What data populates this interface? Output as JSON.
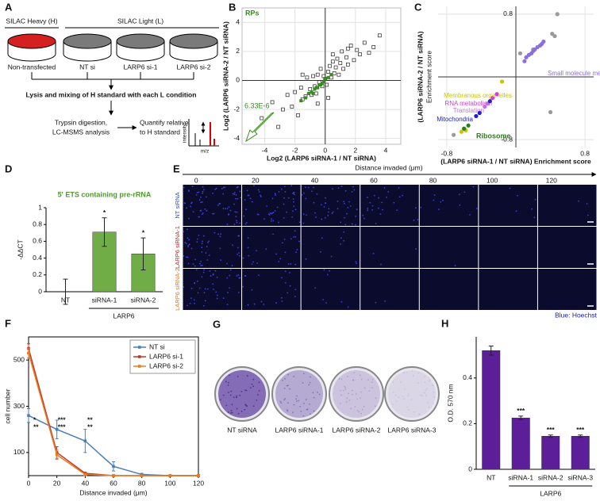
{
  "panel_a": {
    "label": "A",
    "heavy": "SILAC Heavy (H)",
    "light": "SILAC Light (L)",
    "conditions": [
      "Non-transfected",
      "NT si",
      "LARP6 si-1",
      "LARP6 si-2"
    ],
    "step1": "Lysis and mixing of H standard with each L condition",
    "step2": [
      "Trypsin digestion,",
      "LC-MSMS analysis"
    ],
    "step3": [
      "Quantify relative",
      "to H standard"
    ],
    "spectrum_axes": [
      "intensity",
      "m/z"
    ]
  },
  "chart_data": [
    {
      "type": "scatter",
      "panel_label": "B",
      "xlabel": "Log2 (LARP6 siRNA-1 / NT siRNA)",
      "ylabel": "Log2 (LARP6 siRNA-2 / NT siRNA)",
      "annotation": "6.33E-6",
      "series": [
        {
          "color": "#222222",
          "marker": "open-square",
          "x": [
            -4.2,
            -3.5,
            -3.1,
            -2.8,
            -2.5,
            -2.2,
            -2.0,
            -1.8,
            -1.6,
            -1.5,
            -1.3,
            -1.2,
            -1.0,
            -0.9,
            -0.8,
            -0.7,
            -0.6,
            -0.5,
            -0.4,
            -0.3,
            -0.2,
            -0.1,
            0,
            0.1,
            0.2,
            0.3,
            0.4,
            0.5,
            0.6,
            0.7,
            0.8,
            0.9,
            1.0,
            1.1,
            1.2,
            1.4,
            1.5,
            1.7,
            1.9,
            2.1,
            2.3,
            2.6,
            2.9,
            3.2,
            3.6,
            -0.5,
            0.5,
            -1.5,
            1.5,
            0.2
          ],
          "values": [
            -2.6,
            -1.5,
            -3.2,
            -2.0,
            -1.0,
            -1.8,
            -0.8,
            -2.4,
            -0.5,
            -1.3,
            -1.1,
            0.2,
            -0.6,
            -1.0,
            0.3,
            -0.4,
            -0.9,
            0.4,
            -0.1,
            0.8,
            -0.4,
            0.3,
            0.1,
            -0.3,
            0.6,
            1.0,
            0.2,
            1.3,
            0.5,
            0.9,
            1.5,
            0.4,
            1.2,
            2.0,
            0.8,
            1.6,
            1.1,
            2.4,
            1.4,
            2.1,
            1.8,
            2.6,
            1.9,
            2.3,
            3.1,
            -1.6,
            1.8,
            0.4,
            2.2,
            -1.2
          ]
        },
        {
          "name": "RPs",
          "color": "#3a8a22",
          "marker": "square",
          "x": [
            -1.6,
            -1.3,
            -1.1,
            -0.9,
            -0.8,
            -0.7,
            -0.6,
            -0.5,
            -0.4,
            -0.3,
            -0.2,
            -0.1,
            0,
            0.2,
            0.4
          ],
          "values": [
            -1.4,
            -1.2,
            -0.9,
            -0.8,
            -0.9,
            -0.6,
            -0.5,
            -0.5,
            -0.3,
            -0.3,
            -0.2,
            -0.1,
            0.1,
            0.2,
            0.4
          ]
        }
      ],
      "xlim": [
        -5.5,
        5
      ],
      "ylim": [
        -4.4,
        5
      ],
      "xticks": [
        -4,
        -2,
        0,
        2,
        4
      ],
      "yticks": [
        -4,
        -2,
        0,
        2,
        4
      ],
      "grid": true
    },
    {
      "type": "scatter",
      "panel_label": "C",
      "xlabel": "(LARP6 siRNA-1 / NT siRNA) Enrichment score",
      "ylabel": [
        "(LARP6 siRNA-2 / NT siRNA)",
        "Enrichment score"
      ],
      "series": [
        {
          "color": "#9a9a9a",
          "marker": "circle",
          "x": [
            -0.72,
            0.05,
            0.2,
            0.42,
            0.45,
            0.48,
            0.4
          ],
          "values": [
            -0.74,
            0.3,
            0.35,
            0.55,
            0.52,
            0.8,
            -0.45
          ]
        },
        {
          "name": "Small molecule metabolism",
          "color": "#8a6fe0",
          "marker": "circle",
          "x": [
            0.1,
            0.12,
            0.15,
            0.18,
            0.2,
            0.22,
            0.25,
            0.28,
            0.3,
            0.32
          ],
          "values": [
            0.2,
            0.25,
            0.28,
            0.3,
            0.33,
            0.35,
            0.38,
            0.4,
            0.42,
            0.45
          ]
        },
        {
          "name": "Membranous organelles",
          "color": "#c8c400",
          "marker": "circle",
          "x": [
            -0.16,
            -0.58,
            -0.63
          ],
          "values": [
            -0.06,
            -0.68,
            -0.7
          ]
        },
        {
          "name": "RNA metabolism",
          "color": "#d63fd6",
          "marker": "circle",
          "x": [
            -0.22,
            -0.27
          ],
          "values": [
            -0.22,
            -0.27
          ]
        },
        {
          "name": "Translation",
          "color": "#c070e0",
          "marker": "circle",
          "x": [
            -0.33,
            -0.36
          ],
          "values": [
            -0.34,
            -0.38
          ]
        },
        {
          "name": "Mitochondria",
          "color": "#2020c8",
          "marker": "circle",
          "x": [
            -0.3,
            -0.42,
            -0.46
          ],
          "values": [
            -0.31,
            -0.46,
            -0.5
          ]
        },
        {
          "name": "Ribosome",
          "color": "#2e7d1e",
          "marker": "circle",
          "x": [
            -0.55,
            -0.6
          ],
          "values": [
            -0.62,
            -0.66
          ]
        }
      ],
      "xlim": [
        -0.9,
        0.9
      ],
      "ylim": [
        -0.9,
        0.9
      ],
      "xticks": [
        -0.8,
        0.8
      ],
      "yticks": [
        -0.8,
        0.8
      ],
      "grid": true
    },
    {
      "type": "bar",
      "panel_label": "D",
      "title": "5' ETS containing pre-rRNA",
      "ylabel": "-ΔΔCT",
      "categories": [
        "NT",
        "siRNA-1",
        "siRNA-2"
      ],
      "values": [
        0,
        0.71,
        0.45
      ],
      "errors": [
        0.15,
        0.17,
        0.19
      ],
      "significance": [
        null,
        "*",
        "*"
      ],
      "group_label": "LARP6",
      "color": "#70ad47",
      "ylim": [
        0,
        1
      ],
      "yticks": [
        0,
        0.2,
        0.4,
        0.6,
        0.8,
        1
      ]
    },
    {
      "type": "line",
      "panel_label": "F",
      "xlabel": "Distance invaded (μm)",
      "ylabel": "cell number",
      "x": [
        0,
        20,
        40,
        60,
        80,
        100,
        120
      ],
      "series": [
        {
          "name": "NT si",
          "color": "#4a7ebb",
          "values": [
            260,
            200,
            150,
            40,
            5,
            0,
            0
          ],
          "errors": [
            30,
            40,
            50,
            20,
            5,
            0,
            0
          ]
        },
        {
          "name": "LARP6 si-1",
          "color": "#c0392b",
          "values": [
            550,
            100,
            10,
            0,
            0,
            0,
            0
          ],
          "errors": [
            20,
            25,
            5,
            0,
            0,
            0,
            0
          ]
        },
        {
          "name": "LARP6 si-2",
          "color": "#e67e22",
          "values": [
            530,
            90,
            5,
            0,
            0,
            0,
            0
          ],
          "errors": [
            20,
            20,
            5,
            0,
            0,
            0,
            0
          ]
        }
      ],
      "significance": [
        [
          "*",
          "**"
        ],
        [
          "***",
          "***"
        ],
        [
          "**",
          "**"
        ],
        null,
        null,
        null,
        null
      ],
      "xlim": [
        0,
        120
      ],
      "xticks": [
        0,
        20,
        40,
        60,
        80,
        100,
        120
      ],
      "ylim": [
        0,
        600
      ],
      "yticks": [
        100,
        300,
        500
      ],
      "legend": "upper right"
    },
    {
      "type": "bar",
      "panel_label": "H",
      "ylabel": "O.D. 570 nm",
      "categories": [
        "NT",
        "siRNA-1",
        "siRNA-2",
        "siRNA-3"
      ],
      "values": [
        0.52,
        0.225,
        0.145,
        0.145
      ],
      "errors": [
        0.02,
        0.008,
        0.005,
        0.005
      ],
      "significance": [
        null,
        "***",
        "***",
        "***"
      ],
      "group_label": "LARP6",
      "color": "#5c1f99",
      "ylim": [
        0,
        0.58
      ],
      "yticks": [
        0,
        0.2,
        0.4
      ]
    }
  ],
  "panel_e": {
    "label": "E",
    "axis_label": "Distance invaded (μm)",
    "distance_ticks": [
      0,
      20,
      40,
      60,
      80,
      100,
      120
    ],
    "rows": [
      "NT siRNA",
      "LARP6 siRNA-1",
      "LARP6 siRNA-2"
    ],
    "stain": "Blue: Hoechst"
  },
  "panel_g": {
    "label": "G",
    "dishes": [
      "NT siRNA",
      "LARP6 siRNA-1",
      "LARP6 siRNA-2",
      "LARP6 siRNA-3"
    ]
  }
}
